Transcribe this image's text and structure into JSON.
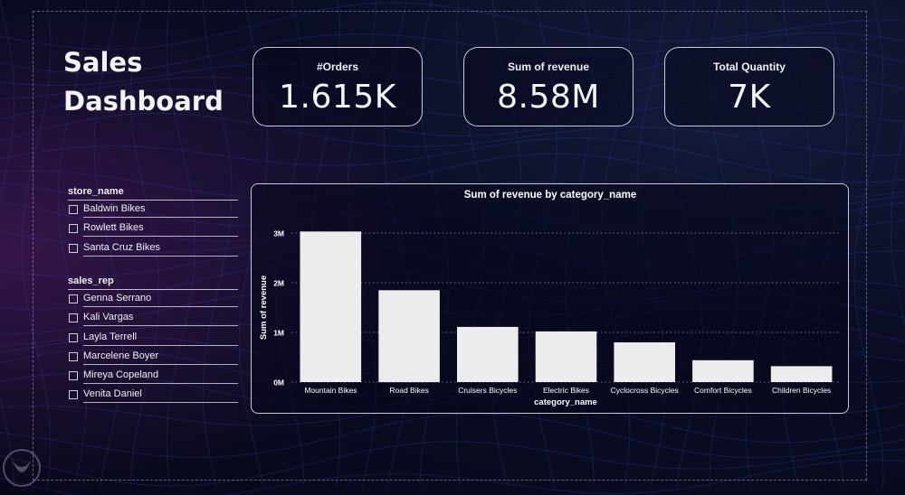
{
  "dashboard": {
    "title_line1": "Sales",
    "title_line2": "Dashboard"
  },
  "cards": [
    {
      "label": "#Orders",
      "value": "1.615K"
    },
    {
      "label": "Sum of revenue",
      "value": "8.58M"
    },
    {
      "label": "Total Quantity",
      "value": "7K"
    }
  ],
  "slicers": {
    "store": {
      "header": "store_name",
      "items": [
        "Baldwin Bikes",
        "Rowlett Bikes",
        "Santa Cruz Bikes"
      ]
    },
    "sales_rep": {
      "header": "sales_rep",
      "items": [
        "Genna Serrano",
        "Kali Vargas",
        "Layla Terrell",
        "Marcelene Boyer",
        "Mireya Copeland",
        "Venita Daniel"
      ]
    }
  },
  "colors": {
    "bar": "#ececec",
    "card_border": "#ebebf5",
    "grid": "#8a8fa8",
    "background": "#0a0d24"
  },
  "chart_data": {
    "type": "bar",
    "title": "Sum of revenue by category_name",
    "xlabel": "category_name",
    "ylabel": "Sum of revenue",
    "categories": [
      "Mountain Bikes",
      "Road Bikes",
      "Cruisers Bicycles",
      "Electric Bikes",
      "Cyclocross Bicycles",
      "Comfort Bicycles",
      "Children Bicycles"
    ],
    "values": [
      3030000,
      1850000,
      1110000,
      1020000,
      800000,
      440000,
      320000
    ],
    "yticks": [
      0,
      1000000,
      2000000,
      3000000
    ],
    "ytick_labels": [
      "0M",
      "1M",
      "2M",
      "3M"
    ],
    "ylim": [
      0,
      3000000
    ],
    "grid": true
  }
}
